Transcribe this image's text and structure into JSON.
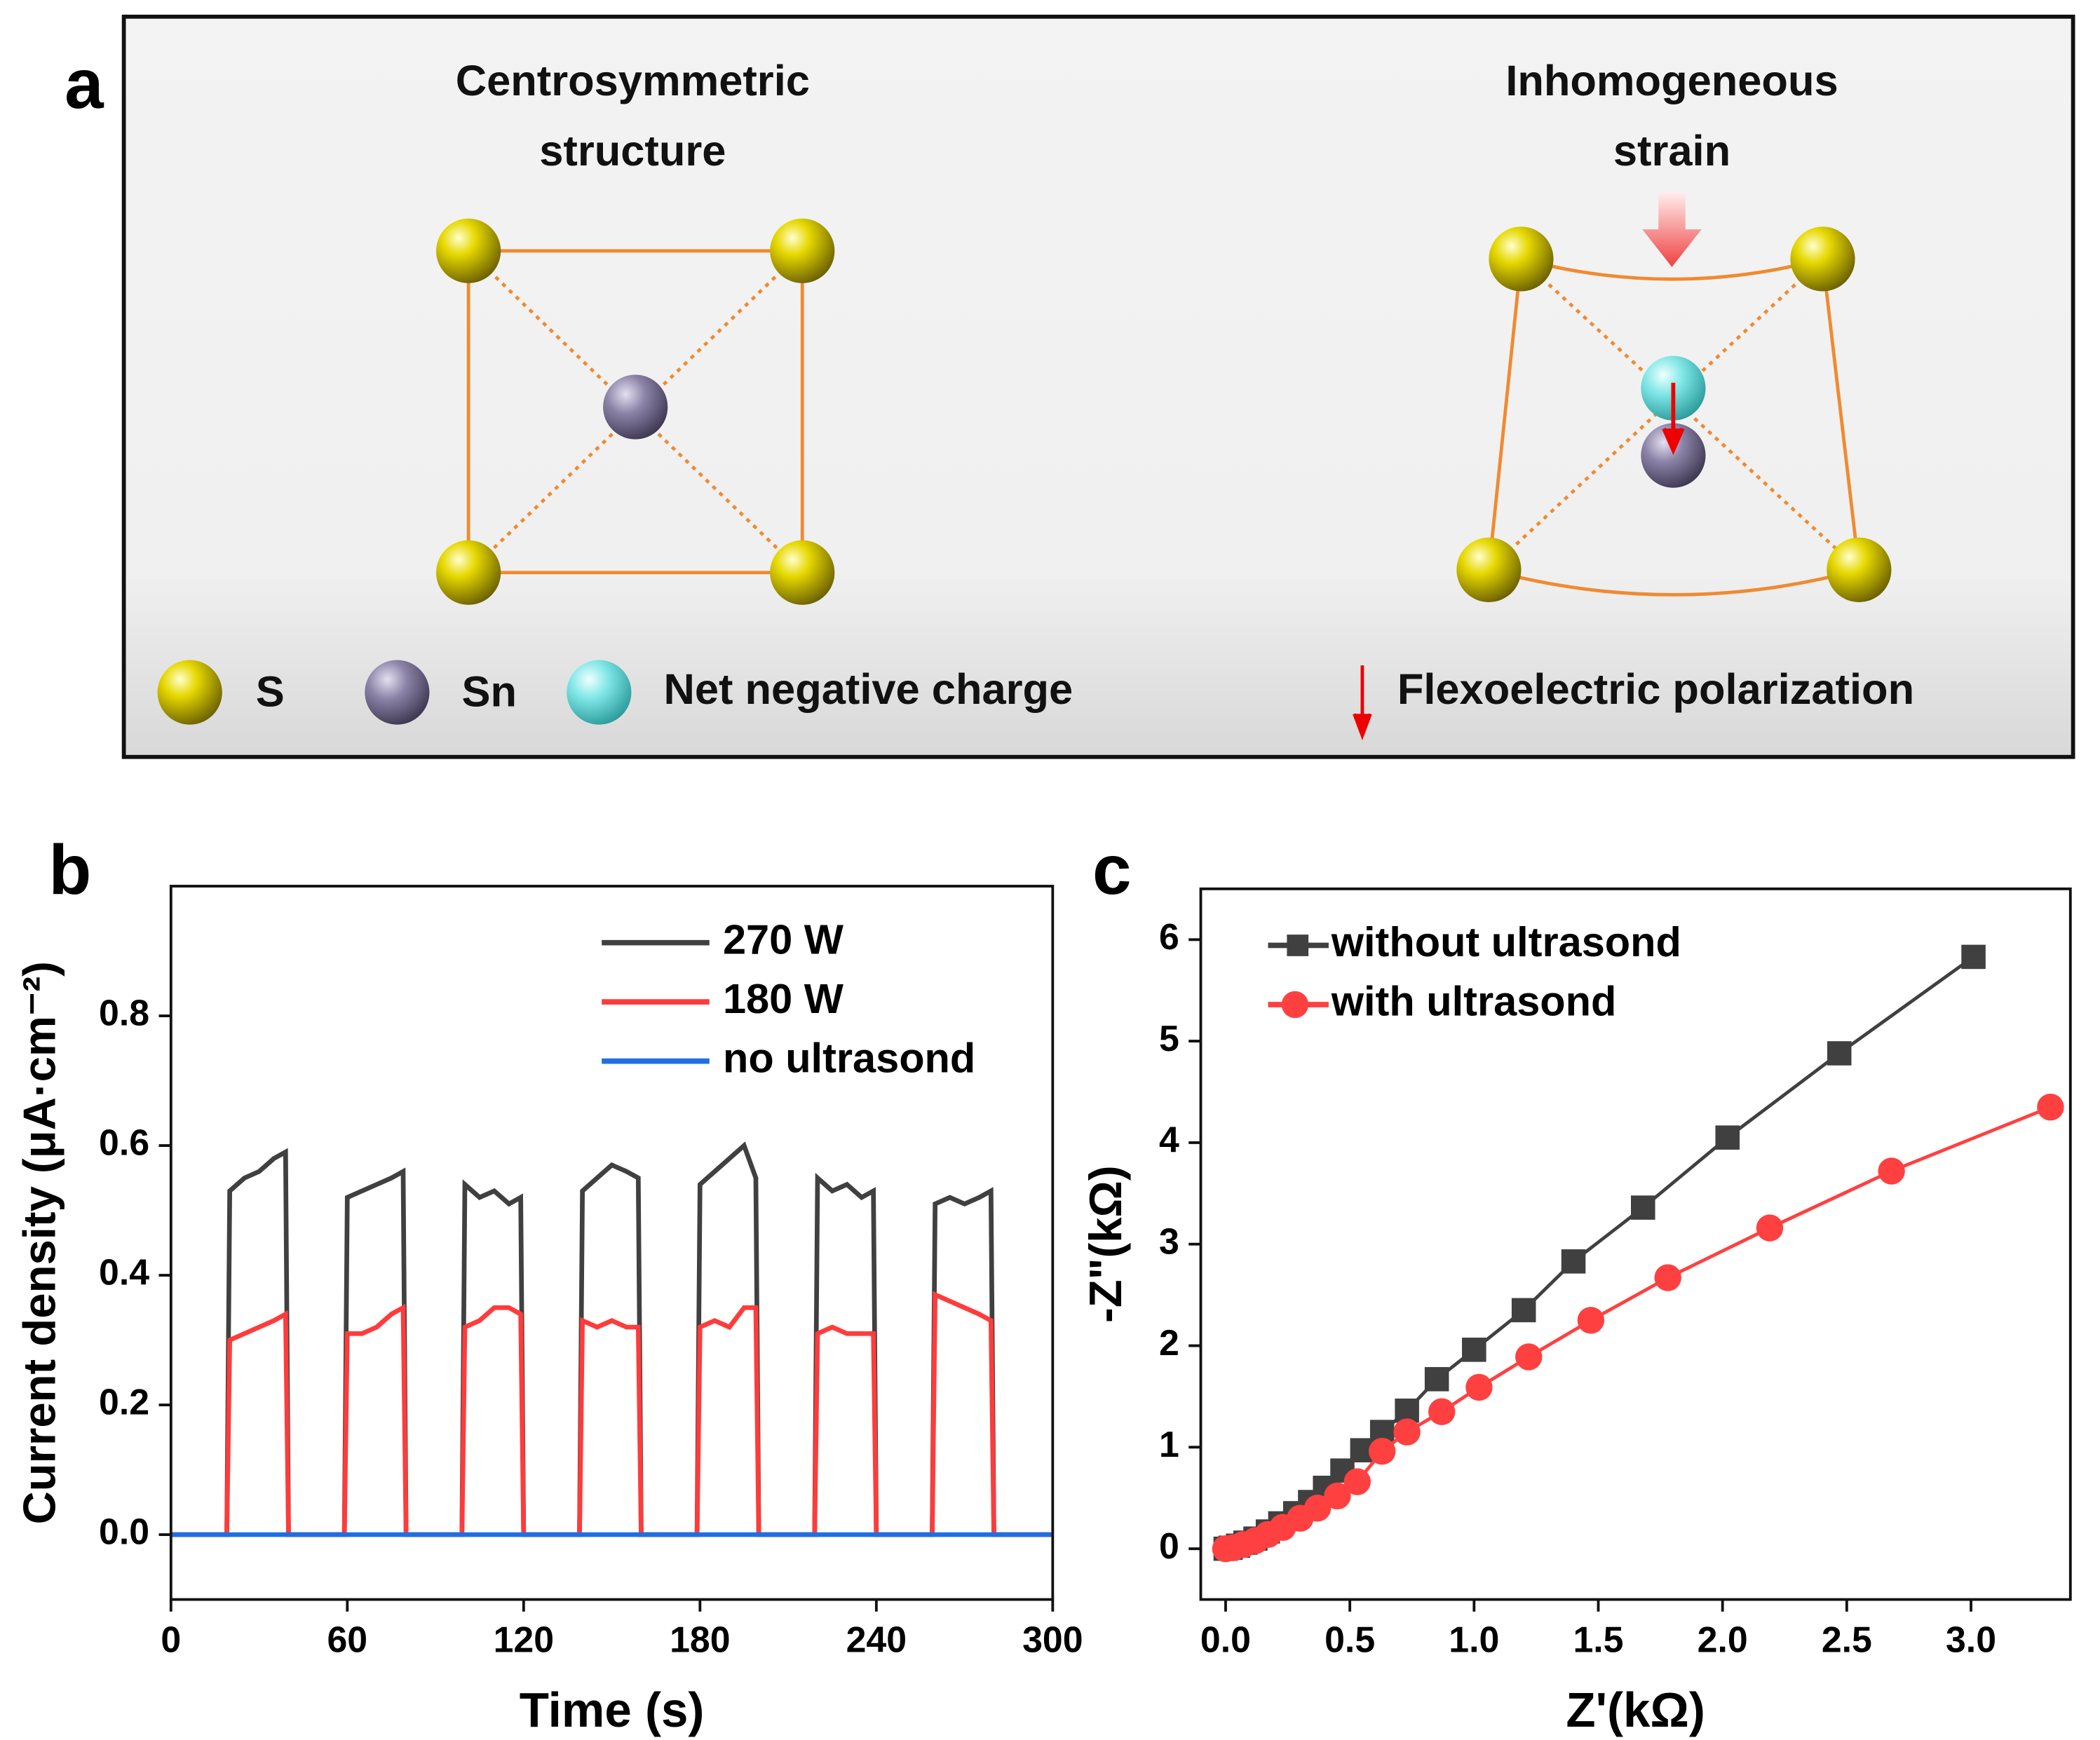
{
  "panel_a": {
    "label": "a",
    "left_title": [
      "Centrosymmetric",
      "structure"
    ],
    "right_title": [
      "Inhomogeneous",
      "strain"
    ],
    "legend": [
      "S",
      "Sn",
      "Net negative charge",
      "Flexoelectric polarization"
    ]
  },
  "chart_data": [
    {
      "type": "line",
      "label": "b",
      "xlabel": "Time (s)",
      "ylabel": "Current density (μA·cm⁻²)",
      "legend": "upper right",
      "xlim": [
        0,
        300
      ],
      "xticks": [
        0,
        60,
        120,
        180,
        240,
        300
      ],
      "ylim": [
        -0.1,
        1.0
      ],
      "yticks": [
        {
          "value": 0,
          "label": "0.0"
        },
        0.2,
        0.4,
        0.6,
        0.8
      ],
      "x": [
        0,
        19,
        20,
        25,
        30,
        35,
        39,
        40,
        59,
        60,
        65,
        70,
        75,
        79,
        80,
        99,
        100,
        105,
        110,
        115,
        119,
        120,
        139,
        140,
        145,
        150,
        155,
        159,
        160,
        179,
        180,
        185,
        190,
        195,
        199,
        200,
        219,
        220,
        225,
        230,
        235,
        239,
        240,
        259,
        260,
        265,
        270,
        275,
        279,
        280,
        300
      ],
      "series": [
        {
          "name": "270 W",
          "color": "#404040",
          "values": [
            0,
            0,
            0.53,
            0.55,
            0.56,
            0.58,
            0.59,
            0,
            0,
            0.52,
            0.53,
            0.54,
            0.55,
            0.56,
            0,
            0,
            0.54,
            0.52,
            0.53,
            0.51,
            0.52,
            0,
            0,
            0.53,
            0.55,
            0.57,
            0.56,
            0.55,
            0,
            0,
            0.54,
            0.56,
            0.58,
            0.6,
            0.55,
            0,
            0,
            0.55,
            0.53,
            0.54,
            0.52,
            0.53,
            0,
            0,
            0.51,
            0.52,
            0.51,
            0.52,
            0.53,
            0,
            0
          ]
        },
        {
          "name": "180 W",
          "color": "#ff3b3b",
          "values": [
            0,
            0,
            0.3,
            0.31,
            0.32,
            0.33,
            0.34,
            0,
            0,
            0.31,
            0.31,
            0.32,
            0.34,
            0.35,
            0,
            0,
            0.32,
            0.33,
            0.35,
            0.35,
            0.34,
            0,
            0,
            0.33,
            0.32,
            0.33,
            0.32,
            0.32,
            0,
            0,
            0.32,
            0.33,
            0.32,
            0.35,
            0.35,
            0,
            0,
            0.31,
            0.32,
            0.31,
            0.31,
            0.31,
            0,
            0,
            0.37,
            0.36,
            0.35,
            0.34,
            0.33,
            0,
            0
          ]
        },
        {
          "name": "no ultrasond",
          "color": "#1f6fe0",
          "values": [
            0,
            0,
            0,
            0,
            0,
            0,
            0,
            0,
            0,
            0,
            0,
            0,
            0,
            0,
            0,
            0,
            0,
            0,
            0,
            0,
            0,
            0,
            0,
            0,
            0,
            0,
            0,
            0,
            0,
            0,
            0,
            0,
            0,
            0,
            0,
            0,
            0,
            0,
            0,
            0,
            0,
            0,
            0,
            0,
            0,
            0,
            0,
            0,
            0,
            0,
            0
          ]
        }
      ]
    },
    {
      "type": "line",
      "label": "c",
      "xlabel": "Z'(kΩ)",
      "ylabel": "-Z\"(kΩ)",
      "legend": "upper left",
      "xlim": [
        -0.1,
        3.4
      ],
      "xticks": [
        {
          "value": 0,
          "label": "0.0"
        },
        0.5,
        {
          "value": 1,
          "label": "1.0"
        },
        1.5,
        {
          "value": 2,
          "label": "2.0"
        },
        2.5,
        {
          "value": 3,
          "label": "3.0"
        }
      ],
      "ylim": [
        -0.5,
        6.5
      ],
      "yticks": [
        0,
        1,
        2,
        3,
        4,
        5,
        6
      ],
      "series": [
        {
          "name": "without ultrasond",
          "color": "#404040",
          "marker": "square",
          "x": [
            0,
            0.02,
            0.05,
            0.08,
            0.12,
            0.17,
            0.22,
            0.28,
            0.34,
            0.4,
            0.47,
            0.55,
            0.63,
            0.73,
            0.85,
            1.0,
            1.2,
            1.4,
            1.68,
            2.02,
            2.47,
            3.01
          ],
          "values": [
            0,
            0.01,
            0.03,
            0.06,
            0.1,
            0.17,
            0.25,
            0.35,
            0.46,
            0.6,
            0.77,
            0.97,
            1.15,
            1.36,
            1.67,
            1.96,
            2.35,
            2.83,
            3.36,
            4.05,
            4.88,
            5.83
          ]
        },
        {
          "name": "with ultrasond",
          "color": "#ff4040",
          "marker": "circle",
          "x": [
            0,
            0.03,
            0.07,
            0.12,
            0.17,
            0.23,
            0.3,
            0.37,
            0.45,
            0.53,
            0.63,
            0.73,
            0.87,
            1.02,
            1.22,
            1.47,
            1.78,
            2.19,
            2.68,
            3.32
          ],
          "values": [
            0,
            0.01,
            0.04,
            0.08,
            0.14,
            0.21,
            0.3,
            0.4,
            0.52,
            0.66,
            0.96,
            1.15,
            1.35,
            1.59,
            1.89,
            2.25,
            2.67,
            3.16,
            3.72,
            4.35
          ]
        }
      ]
    }
  ]
}
